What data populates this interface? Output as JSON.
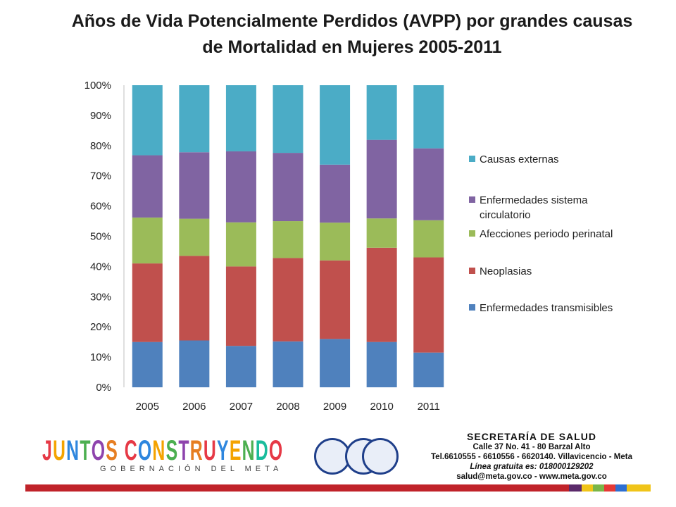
{
  "title": {
    "line1": "Años de Vida Potencialmente Perdidos (AVPP) por grandes causas",
    "line2": "de Mortalidad en Mujeres 2005-2011"
  },
  "chart_data": {
    "type": "bar",
    "stacked": "percent",
    "categories": [
      "2005",
      "2006",
      "2007",
      "2008",
      "2009",
      "2010",
      "2011"
    ],
    "series": [
      {
        "name": "Enfermedades transmisibles",
        "color": "#4f81bd",
        "values": [
          15,
          15.5,
          13.7,
          15.2,
          16,
          15,
          11.5
        ]
      },
      {
        "name": "Neoplasias",
        "color": "#c0504d",
        "values": [
          26,
          28,
          26.3,
          27.6,
          26,
          31.2,
          31.5
        ]
      },
      {
        "name": "Afecciones periodo perinatal",
        "color": "#9bbb59",
        "values": [
          15.2,
          12.3,
          14.6,
          12.2,
          12.5,
          9.7,
          12.3
        ]
      },
      {
        "name": "Enfermedades sistema circulatorio",
        "color": "#8064a2",
        "values": [
          20.6,
          22,
          23.5,
          22.6,
          19.2,
          26,
          23.8
        ]
      },
      {
        "name": "Causas externas",
        "color": "#4bacc6",
        "values": [
          23.2,
          22.2,
          21.9,
          22.4,
          26.3,
          18.1,
          20.9
        ]
      }
    ],
    "legend_order": [
      "Causas externas",
      "Enfermedades sistema circulatorio",
      "Afecciones periodo perinatal",
      "Neoplasias",
      "Enfermedades transmisibles"
    ],
    "legend_labels": {
      "Causas externas": [
        "Causas externas"
      ],
      "Enfermedades sistema circulatorio": [
        "Enfermedades sistema",
        "circulatorio"
      ],
      "Afecciones periodo perinatal": [
        "Afecciones periodo perinatal"
      ],
      "Neoplasias": [
        "Neoplasias"
      ],
      "Enfermedades transmisibles": [
        "Enfermedades transmisibles"
      ]
    },
    "y_ticks": [
      "0%",
      "10%",
      "20%",
      "30%",
      "40%",
      "50%",
      "60%",
      "70%",
      "80%",
      "90%",
      "100%"
    ],
    "ylim": [
      0,
      100
    ],
    "legend_position": "right",
    "grid": false
  },
  "footer": {
    "logo_text": "JUNTOS CONSTRUYENDO",
    "logo_subtitle": "GOBERNACIÓN DEL META",
    "seal_names": [
      "gobernacion-seal-icon",
      "iso-9001-cert-icon",
      "iqnet-cert-icon"
    ],
    "contact": {
      "heading": "SECRETARÍA DE SALUD",
      "address": "Calle 37 No. 41 - 80 Barzal Alto",
      "phones": "Tel.6610555 - 6610556 - 6620140. Villavicencio - Meta",
      "hotline": "Línea gratuita es: 018000129202",
      "web": "salud@meta.gov.co - www.meta.gov.co"
    },
    "stripe_colors": [
      "#c0232a",
      "#5a2a6a",
      "#f0c419",
      "#7ab648",
      "#e53935",
      "#2e6fd1",
      "#f0c419"
    ]
  }
}
